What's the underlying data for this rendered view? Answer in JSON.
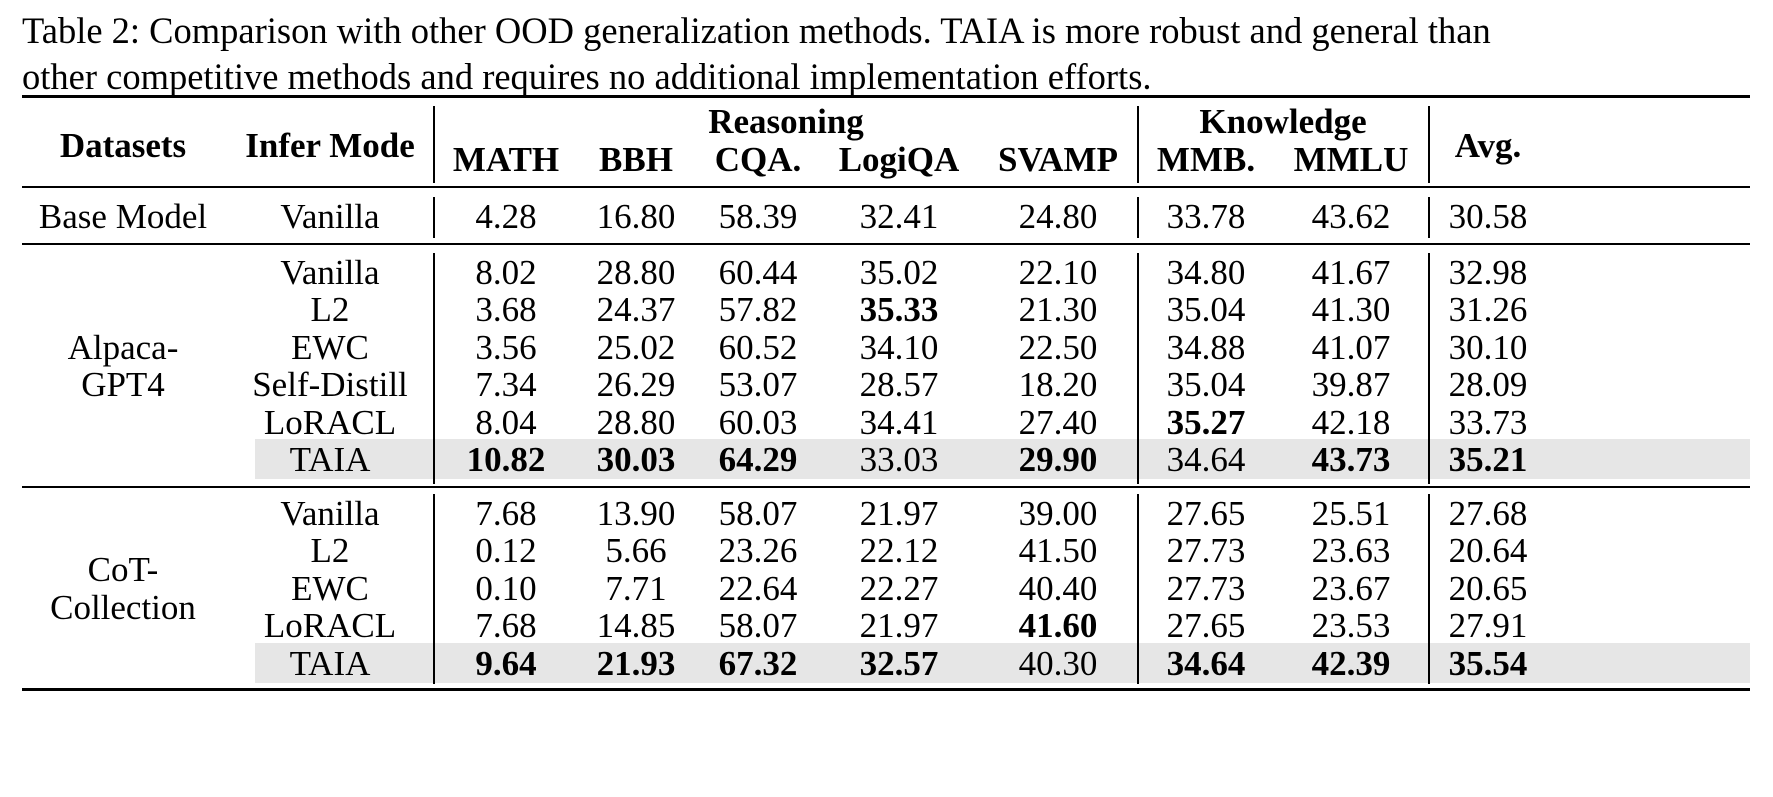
{
  "caption": {
    "line1": "Table 2: Comparison with other OOD generalization methods. TAIA is more robust and general than",
    "line2": "other competitive methods and requires no additional implementation efforts."
  },
  "header": {
    "datasets": "Datasets",
    "infer_mode": "Infer Mode",
    "group_reasoning": "Reasoning",
    "group_knowledge": "Knowledge",
    "avg": "Avg.",
    "columns": [
      "MATH",
      "BBH",
      "CQA.",
      "LogiQA",
      "SVAMP",
      "MMB.",
      "MMLU"
    ]
  },
  "groups": [
    {
      "dataset_lines": [
        "Base Model"
      ],
      "rows": [
        {
          "mode": "Vanilla",
          "values": [
            "4.28",
            "16.80",
            "58.39",
            "32.41",
            "24.80",
            "33.78",
            "43.62",
            "30.58"
          ],
          "bold": [],
          "highlight": false
        }
      ]
    },
    {
      "dataset_lines": [
        "Alpaca-",
        "GPT4"
      ],
      "rows": [
        {
          "mode": "Vanilla",
          "values": [
            "8.02",
            "28.80",
            "60.44",
            "35.02",
            "22.10",
            "34.80",
            "41.67",
            "32.98"
          ],
          "bold": [],
          "highlight": false
        },
        {
          "mode": "L2",
          "values": [
            "3.68",
            "24.37",
            "57.82",
            "35.33",
            "21.30",
            "35.04",
            "41.30",
            "31.26"
          ],
          "bold": [
            3
          ],
          "highlight": false
        },
        {
          "mode": "EWC",
          "values": [
            "3.56",
            "25.02",
            "60.52",
            "34.10",
            "22.50",
            "34.88",
            "41.07",
            "30.10"
          ],
          "bold": [],
          "highlight": false
        },
        {
          "mode": "Self-Distill",
          "values": [
            "7.34",
            "26.29",
            "53.07",
            "28.57",
            "18.20",
            "35.04",
            "39.87",
            "28.09"
          ],
          "bold": [],
          "highlight": false
        },
        {
          "mode": "LoRACL",
          "values": [
            "8.04",
            "28.80",
            "60.03",
            "34.41",
            "27.40",
            "35.27",
            "42.18",
            "33.73"
          ],
          "bold": [
            5
          ],
          "highlight": false
        },
        {
          "mode": "TAIA",
          "values": [
            "10.82",
            "30.03",
            "64.29",
            "33.03",
            "29.90",
            "34.64",
            "43.73",
            "35.21"
          ],
          "bold": [
            0,
            1,
            2,
            4,
            6,
            7
          ],
          "highlight": true
        }
      ]
    },
    {
      "dataset_lines": [
        "CoT-",
        "Collection"
      ],
      "rows": [
        {
          "mode": "Vanilla",
          "values": [
            "7.68",
            "13.90",
            "58.07",
            "21.97",
            "39.00",
            "27.65",
            "25.51",
            "27.68"
          ],
          "bold": [],
          "highlight": false
        },
        {
          "mode": "L2",
          "values": [
            "0.12",
            "5.66",
            "23.26",
            "22.12",
            "41.50",
            "27.73",
            "23.63",
            "20.64"
          ],
          "bold": [],
          "highlight": false
        },
        {
          "mode": "EWC",
          "values": [
            "0.10",
            "7.71",
            "22.64",
            "22.27",
            "40.40",
            "27.73",
            "23.67",
            "20.65"
          ],
          "bold": [],
          "highlight": false
        },
        {
          "mode": "LoRACL",
          "values": [
            "7.68",
            "14.85",
            "58.07",
            "21.97",
            "41.60",
            "27.65",
            "23.53",
            "27.91"
          ],
          "bold": [
            4
          ],
          "highlight": false
        },
        {
          "mode": "TAIA",
          "values": [
            "9.64",
            "21.93",
            "67.32",
            "32.57",
            "40.30",
            "34.64",
            "42.39",
            "35.54"
          ],
          "bold": [
            0,
            1,
            2,
            3,
            5,
            6,
            7
          ],
          "highlight": true
        }
      ]
    }
  ]
}
